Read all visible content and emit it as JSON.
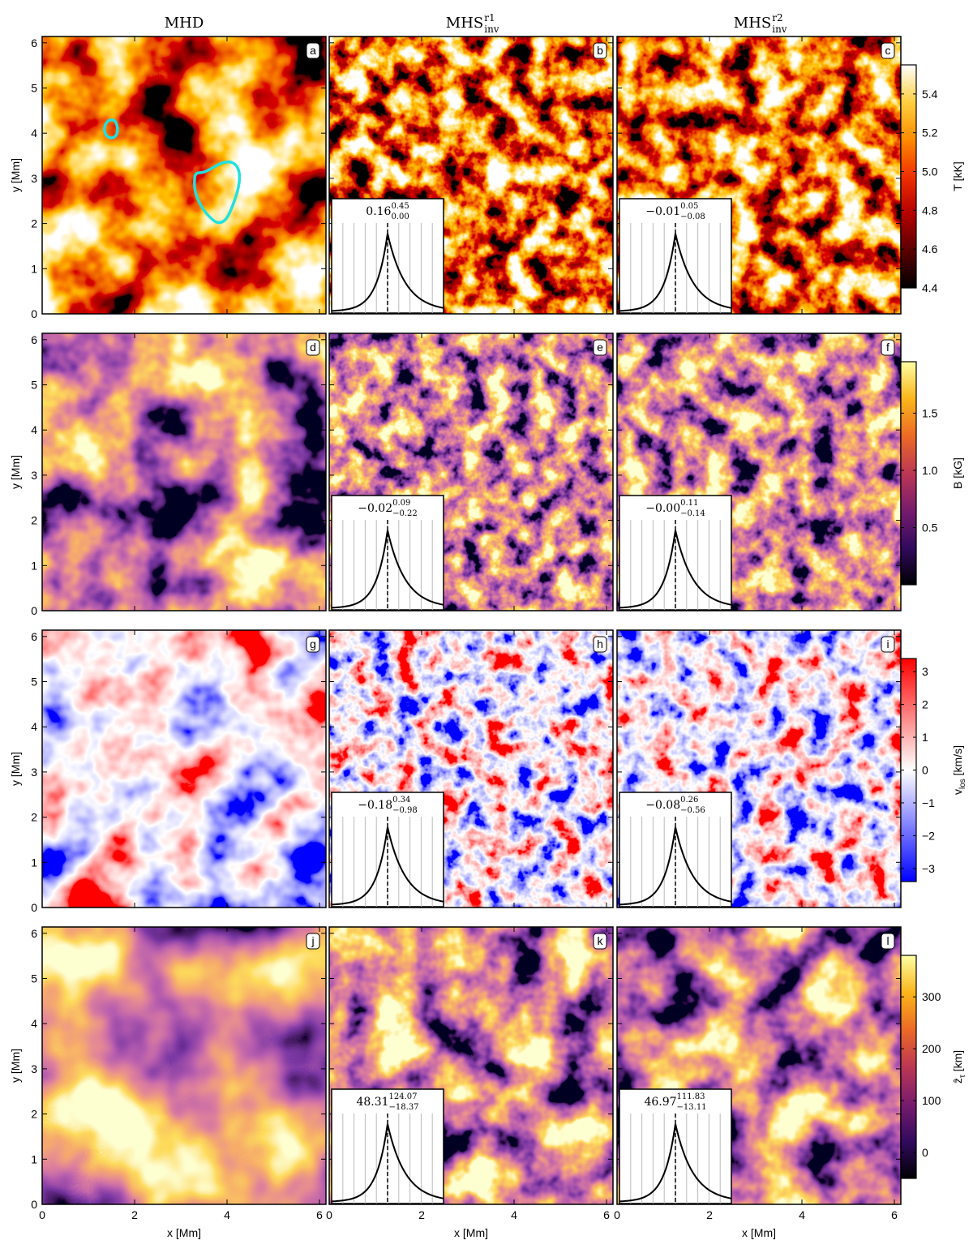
{
  "columns": [
    {
      "base": "MHD"
    },
    {
      "base": "MHS",
      "sup": "r1",
      "sub": "inv"
    },
    {
      "base": "MHS",
      "sup": "r2",
      "sub": "inv"
    }
  ],
  "axes": {
    "xlabel": "x [Mm]",
    "ylabel": "y [Mm]",
    "xlim": [
      0,
      6.14
    ],
    "ylim": [
      0,
      6.14
    ],
    "xticks": [
      0,
      2,
      4,
      6
    ],
    "yticks": [
      0,
      1,
      2,
      3,
      4,
      5,
      6
    ]
  },
  "rows": [
    {
      "colorbar": {
        "label": {
          "base": "T",
          "unit": "[kK]"
        },
        "lim": [
          4.4,
          5.55
        ],
        "ticks": [
          4.4,
          4.6,
          4.8,
          {
            "value": 5,
            "label": "5.0"
          },
          5.2,
          5.4
        ],
        "colormap": [
          "#000000",
          "#5a0000",
          "#b40000",
          "#f03000",
          "#ff8c00",
          "#ffd040",
          "#ffffff"
        ]
      },
      "panels": [
        {
          "letter": "a"
        },
        {
          "letter": "b",
          "inset": {
            "value": "0.16",
            "upper": "0.45",
            "lower": "0.00"
          }
        },
        {
          "letter": "c",
          "inset": {
            "value": "−0.01",
            "upper": "0.05",
            "lower": "−0.08"
          }
        }
      ]
    },
    {
      "colorbar": {
        "label": {
          "base": "B",
          "unit": "[kG]"
        },
        "lim": [
          0,
          1.95
        ],
        "ticks": [
          0.5,
          {
            "value": 1,
            "label": "1.0"
          },
          1.5
        ],
        "colormap": [
          "#000004",
          "#320a5e",
          "#781c6d",
          "#bc3754",
          "#ed6925",
          "#fbb61a",
          "#fcffa4"
        ]
      },
      "panels": [
        {
          "letter": "d"
        },
        {
          "letter": "e",
          "inset": {
            "value": "−0.02",
            "upper": "0.09",
            "lower": "−0.22"
          }
        },
        {
          "letter": "f",
          "inset": {
            "value": "−0.00",
            "upper": "0.11",
            "lower": "−0.14"
          }
        }
      ]
    },
    {
      "colorbar": {
        "label": {
          "base": "v",
          "sub": "los",
          "unit": "[km/s]"
        },
        "lim": [
          -3.4,
          3.4
        ],
        "ticks": [
          {
            "value": -3,
            "label": "−3"
          },
          {
            "value": -2,
            "label": "−2"
          },
          {
            "value": -1,
            "label": "−1"
          },
          0,
          1,
          2,
          3
        ],
        "colormap": [
          "#0000ff",
          "#8080ff",
          "#ffffff",
          "#ff8080",
          "#ff0000"
        ]
      },
      "panels": [
        {
          "letter": "g"
        },
        {
          "letter": "h",
          "inset": {
            "value": "−0.18",
            "upper": "0.34",
            "lower": "−0.98"
          }
        },
        {
          "letter": "i",
          "inset": {
            "value": "−0.08",
            "upper": "0.26",
            "lower": "−0.56"
          }
        }
      ]
    },
    {
      "colorbar": {
        "label": {
          "base": "ẑ",
          "sub": "τ",
          "unit": "[km]"
        },
        "lim": [
          -50,
          380
        ],
        "ticks": [
          0,
          100,
          200,
          300
        ],
        "colormap": [
          "#000004",
          "#320a5e",
          "#781c6d",
          "#bc3754",
          "#ed6925",
          "#fbb61a",
          "#fcffa4"
        ]
      },
      "panels": [
        {
          "letter": "j"
        },
        {
          "letter": "k",
          "inset": {
            "value": "48.31",
            "upper": "124.07",
            "lower": "−18.37"
          }
        },
        {
          "letter": "l",
          "inset": {
            "value": "46.97",
            "upper": "111.83",
            "lower": "−13.11"
          }
        }
      ]
    }
  ]
}
